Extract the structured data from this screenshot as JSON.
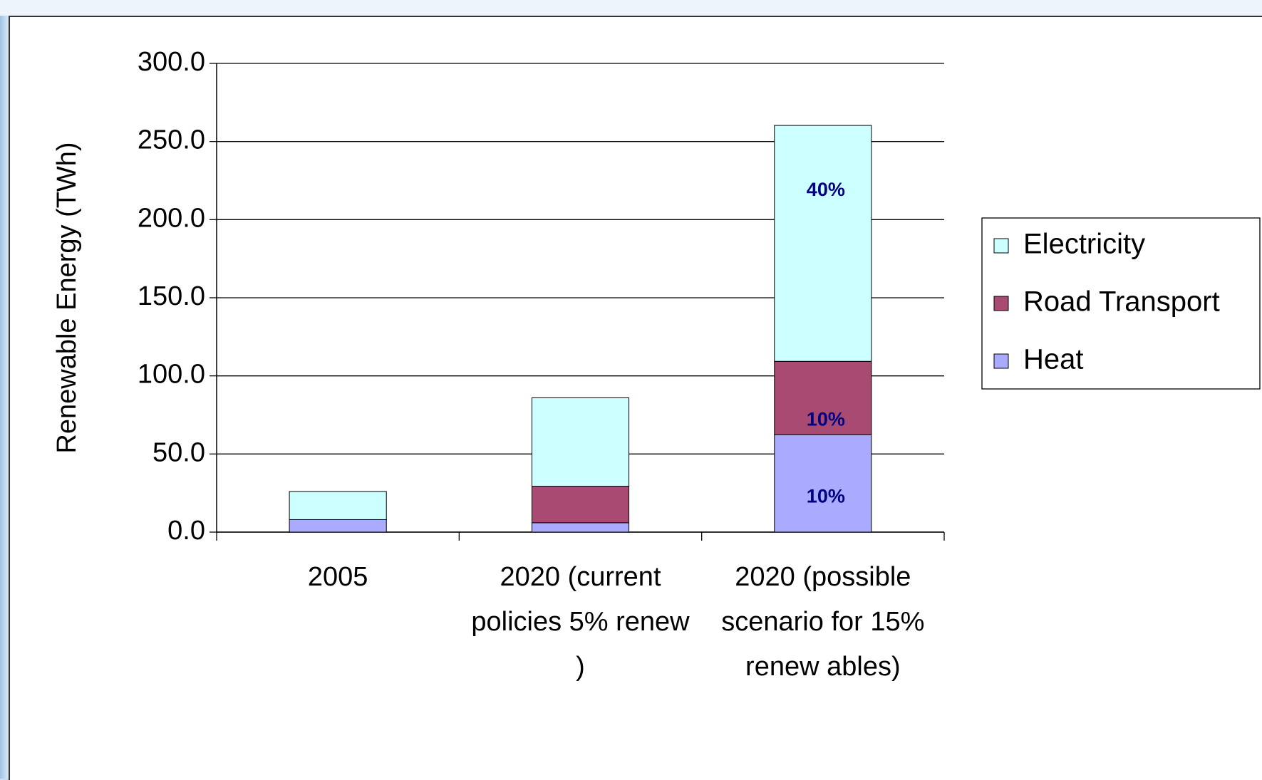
{
  "chart_data": {
    "type": "stacked_bar",
    "y_axis_label": "Renewable Energy (TWh)",
    "categories": [
      "2005",
      "2020 (current policies 5% renew )",
      "2020 (possible scenario for 15% renew ables)"
    ],
    "series": [
      {
        "name": "Heat",
        "color": "#aaaaff",
        "values": [
          8,
          6,
          62.4
        ],
        "segment_labels": [
          null,
          null,
          "10%"
        ]
      },
      {
        "name": "Road Transport",
        "color": "#a94a73",
        "values": [
          0,
          23.4,
          46.9
        ],
        "segment_labels": [
          null,
          null,
          "10%"
        ]
      },
      {
        "name": "Electricity",
        "color": "#ccffff",
        "values": [
          18,
          56.6,
          151
        ],
        "segment_labels": [
          null,
          null,
          "40%"
        ]
      }
    ],
    "ylim": [
      0,
      300
    ],
    "yticks": [
      {
        "value": 0,
        "label": "0.0"
      },
      {
        "value": 50,
        "label": "50.0"
      },
      {
        "value": 100,
        "label": "100.0"
      },
      {
        "value": 150,
        "label": "150.0"
      },
      {
        "value": 200,
        "label": "200.0"
      },
      {
        "value": 250,
        "label": "250.0"
      },
      {
        "value": 300,
        "label": "300.0"
      }
    ],
    "grid": true,
    "legend": "right"
  }
}
